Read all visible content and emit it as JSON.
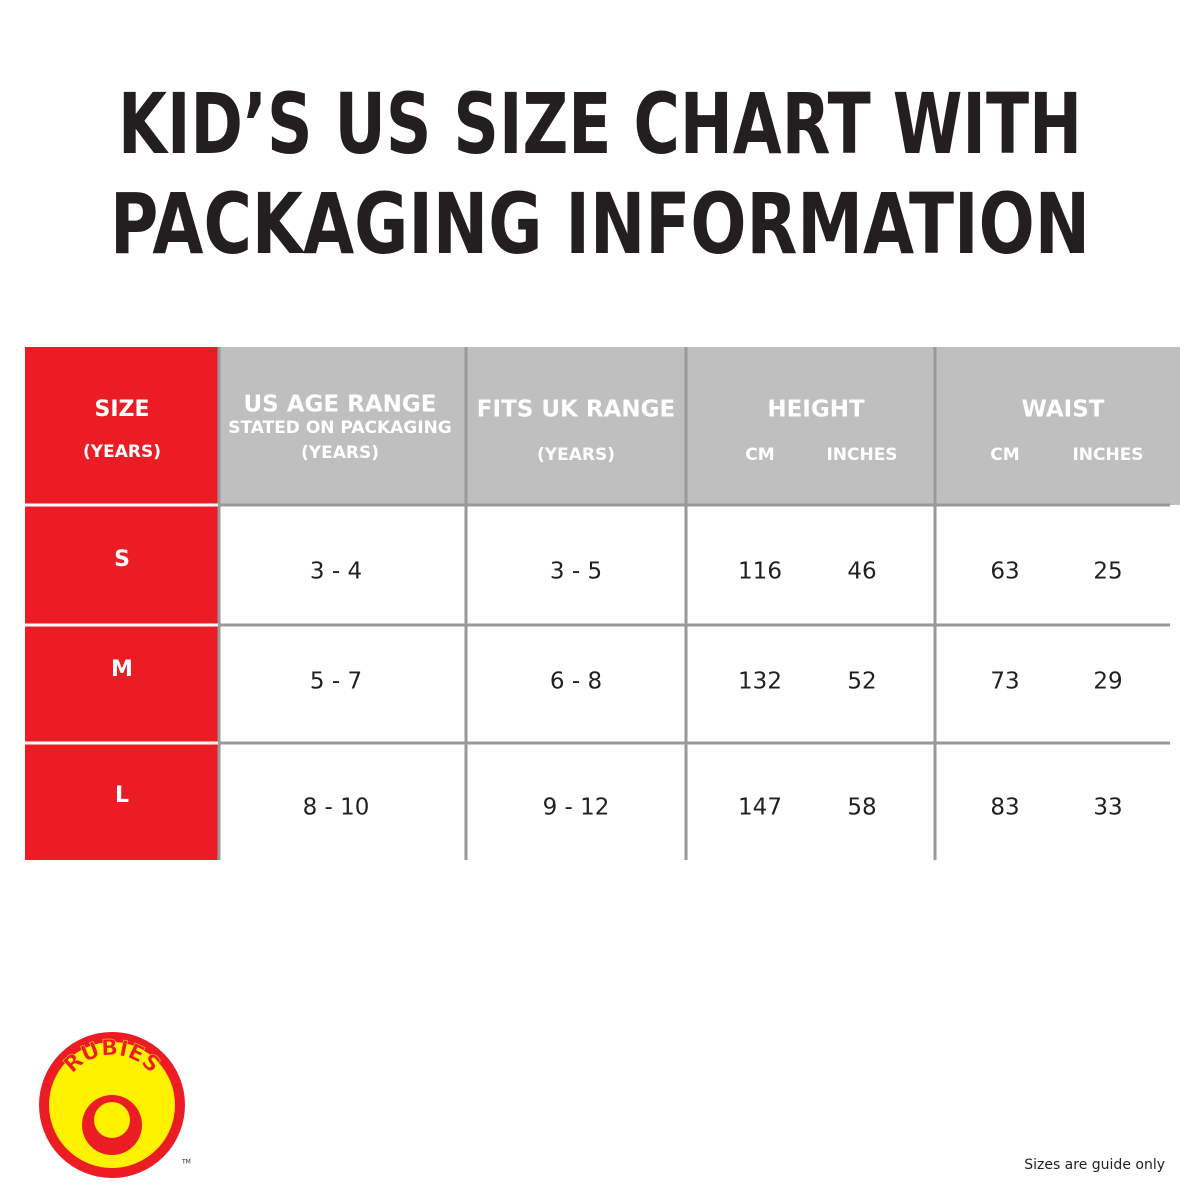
{
  "header": {
    "title_lines": [
      "KID’S US SIZE CHART WITH",
      "PACKAGING INFORMATION"
    ]
  },
  "table": {
    "columns": [
      {
        "title": "SIZE",
        "lines": [
          "(YEARS)"
        ]
      },
      {
        "title": "US AGE RANGE",
        "lines": [
          "STATED ON PACKAGING",
          "(YEARS)"
        ]
      },
      {
        "title": "FITS UK RANGE",
        "lines": [
          "(YEARS)"
        ]
      },
      {
        "title": "HEIGHT",
        "subcolumns": [
          "CM",
          "INCHES"
        ]
      },
      {
        "title": "WAIST",
        "subcolumns": [
          "CM",
          "INCHES"
        ]
      }
    ],
    "rows": [
      [
        "S",
        "3 - 4",
        "3 - 5",
        116,
        46,
        63,
        25
      ],
      [
        "M",
        "5 - 7",
        "6 - 8",
        132,
        52,
        73,
        29
      ],
      [
        "L",
        "8 - 10",
        "9 - 12",
        147,
        58,
        83,
        33
      ]
    ]
  },
  "logo": {
    "text": "RUBIES",
    "mark": "TM"
  },
  "footer": {
    "note": "Sizes are guide only"
  }
}
